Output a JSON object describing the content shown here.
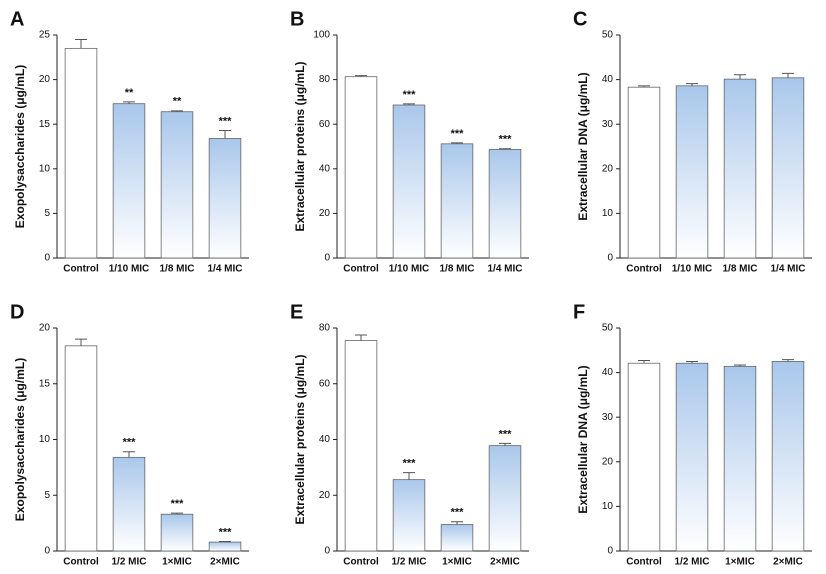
{
  "chart_data": [
    {
      "type": "bar",
      "panel": "A",
      "ylabel": "Exopolysaccharides (μg/mL)",
      "categories": [
        "Control",
        "1/10 MIC",
        "1/8 MIC",
        "1/4 MIC"
      ],
      "values": [
        23.5,
        17.3,
        16.4,
        13.4
      ],
      "errors": [
        1.0,
        0.2,
        0.1,
        0.9
      ],
      "significance": [
        null,
        "**",
        "**",
        "***"
      ],
      "colors": [
        "#ffffff",
        "#a9c7eb",
        "#a9c7eb",
        "#a9c7eb"
      ],
      "ylim": [
        0,
        25
      ],
      "yticks": [
        0,
        5,
        10,
        15,
        20,
        25
      ]
    },
    {
      "type": "bar",
      "panel": "B",
      "ylabel": "Extracellular proteins (μg/mL)",
      "categories": [
        "Control",
        "1/10 MIC",
        "1/8 MIC",
        "1/4 MIC"
      ],
      "values": [
        81.3,
        68.6,
        51.2,
        48.7
      ],
      "errors": [
        0.5,
        0.5,
        0.4,
        0.3
      ],
      "significance": [
        null,
        "***",
        "***",
        "***"
      ],
      "colors": [
        "#ffffff",
        "#a9c7eb",
        "#a9c7eb",
        "#a9c7eb"
      ],
      "ylim": [
        0,
        100
      ],
      "yticks": [
        0,
        20,
        40,
        60,
        80,
        100
      ]
    },
    {
      "type": "bar",
      "panel": "C",
      "ylabel": "Extracellular DNA (μg/mL)",
      "categories": [
        "Control",
        "1/10 MIC",
        "1/8 MIC",
        "1/4 MIC"
      ],
      "values": [
        38.3,
        38.6,
        40.1,
        40.4
      ],
      "errors": [
        0.3,
        0.5,
        1.0,
        1.0
      ],
      "colors": [
        "#ffffff",
        "#a9c7eb",
        "#a9c7eb",
        "#a9c7eb"
      ],
      "ylim": [
        0,
        50
      ],
      "yticks": [
        0,
        10,
        20,
        30,
        40,
        50
      ]
    },
    {
      "type": "bar",
      "panel": "D",
      "ylabel": "Exopolysaccharides (μg/mL)",
      "categories": [
        "Control",
        "1/2 MIC",
        "1×MIC",
        "2×MIC"
      ],
      "values": [
        18.4,
        8.4,
        3.3,
        0.8
      ],
      "errors": [
        0.6,
        0.5,
        0.1,
        0.05
      ],
      "significance": [
        null,
        "***",
        "***",
        "***"
      ],
      "colors": [
        "#ffffff",
        "#a9c7eb",
        "#a9c7eb",
        "#a9c7eb"
      ],
      "ylim": [
        0,
        20
      ],
      "yticks": [
        0,
        5,
        10,
        15,
        20
      ]
    },
    {
      "type": "bar",
      "panel": "E",
      "ylabel": "Extracellular proteins (μg/mL)",
      "categories": [
        "Control",
        "1/2 MIC",
        "1×MIC",
        "2×MIC"
      ],
      "values": [
        75.5,
        25.6,
        9.5,
        37.8
      ],
      "errors": [
        2.0,
        2.5,
        1.0,
        0.8
      ],
      "significance": [
        null,
        "***",
        "***",
        "***"
      ],
      "colors": [
        "#ffffff",
        "#a9c7eb",
        "#a9c7eb",
        "#a9c7eb"
      ],
      "ylim": [
        0,
        80
      ],
      "yticks": [
        0,
        20,
        40,
        60,
        80
      ]
    },
    {
      "type": "bar",
      "panel": "F",
      "ylabel": "Extracellular DNA (μg/mL)",
      "categories": [
        "Control",
        "1/2 MIC",
        "1×MIC",
        "2×MIC"
      ],
      "values": [
        42.1,
        42.1,
        41.4,
        42.5
      ],
      "errors": [
        0.6,
        0.4,
        0.3,
        0.4
      ],
      "colors": [
        "#ffffff",
        "#a9c7eb",
        "#a9c7eb",
        "#a9c7eb"
      ],
      "ylim": [
        0,
        50
      ],
      "yticks": [
        0,
        10,
        20,
        30,
        40,
        50
      ]
    }
  ]
}
